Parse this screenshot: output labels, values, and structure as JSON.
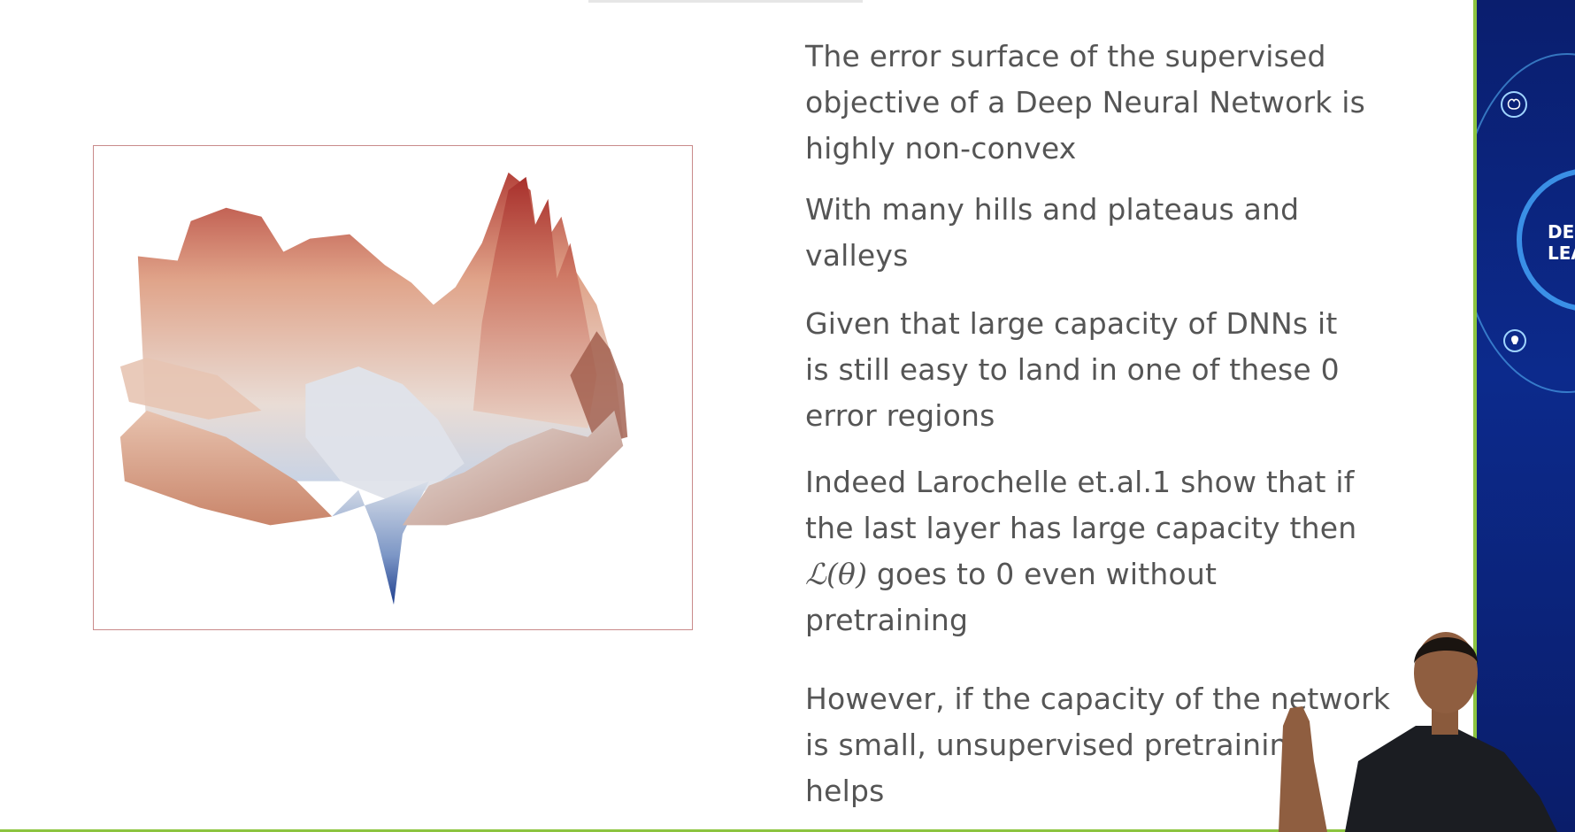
{
  "slide": {
    "bullets": [
      {
        "lines": [
          "The error surface of the supervised",
          "objective of a Deep Neural Network is",
          "highly non-convex"
        ]
      },
      {
        "lines": [
          "With many hills and plateaus and",
          "valleys"
        ]
      },
      {
        "lines": [
          "Given that large capacity of DNNs it",
          "is still easy to land in one of these 0",
          "error regions"
        ]
      },
      {
        "lines": [
          "Indeed Larochelle et.al.1 show that if",
          "the last layer has large capacity then"
        ],
        "math": "ℒ(θ)",
        "math_tail": "goes to 0 even without",
        "last_line": "pretraining"
      },
      {
        "lines": [
          "However, if the capacity of the network",
          "is small, unsupervised pretraining",
          "helps"
        ]
      }
    ]
  },
  "side_panel": {
    "logo_lines": [
      "DEEP",
      "LEARN"
    ]
  },
  "colors": {
    "accent_green": "#8cc43f",
    "panel_blue": "#0c2a8c",
    "text_gray": "#555555",
    "surface_red": "#b5433b",
    "surface_blue": "#2b4fa0"
  },
  "icons": [
    "error-surface-figure",
    "brain-icon",
    "lightbulb-icon",
    "person-presenter"
  ]
}
